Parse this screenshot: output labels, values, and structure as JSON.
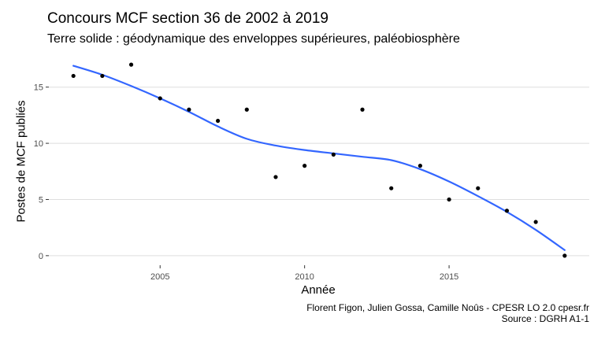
{
  "chart_data": {
    "type": "scatter",
    "title": "Concours MCF section 36 de 2002 à 2019",
    "subtitle": "Terre solide : géodynamique des enveloppes supérieures, paléobiosphère",
    "xlabel": "Année",
    "ylabel": "Postes de MCF publiés",
    "x": [
      2002,
      2003,
      2004,
      2005,
      2006,
      2007,
      2008,
      2009,
      2010,
      2011,
      2012,
      2013,
      2014,
      2015,
      2016,
      2017,
      2018,
      2019
    ],
    "y": [
      16,
      16,
      17,
      14,
      13,
      12,
      13,
      7,
      8,
      9,
      13,
      6,
      8,
      5,
      6,
      4,
      3,
      0
    ],
    "smooth": {
      "x": [
        2002,
        2003,
        2004,
        2005,
        2006,
        2007,
        2008,
        2009,
        2010,
        2011,
        2012,
        2013,
        2014,
        2015,
        2016,
        2017,
        2018,
        2019
      ],
      "y": [
        16.9,
        16.1,
        15.1,
        14.0,
        12.8,
        11.5,
        10.4,
        9.8,
        9.4,
        9.1,
        8.8,
        8.5,
        7.7,
        6.6,
        5.3,
        3.9,
        2.3,
        0.5
      ]
    },
    "xticks": [
      2005,
      2010,
      2015
    ],
    "yticks": [
      0,
      5,
      10,
      15
    ],
    "xlim": [
      2001.15,
      2019.85
    ],
    "ylim": [
      -0.85,
      17.85
    ],
    "grid": true,
    "colors": {
      "points": "#000000",
      "smooth": "#3366FF",
      "grid": "#dedede"
    },
    "caption": [
      "Florent Figon, Julien Gossa, Camille Noûs - CPESR LO 2.0 cpesr.fr",
      "Source : DGRH A1-1"
    ]
  }
}
